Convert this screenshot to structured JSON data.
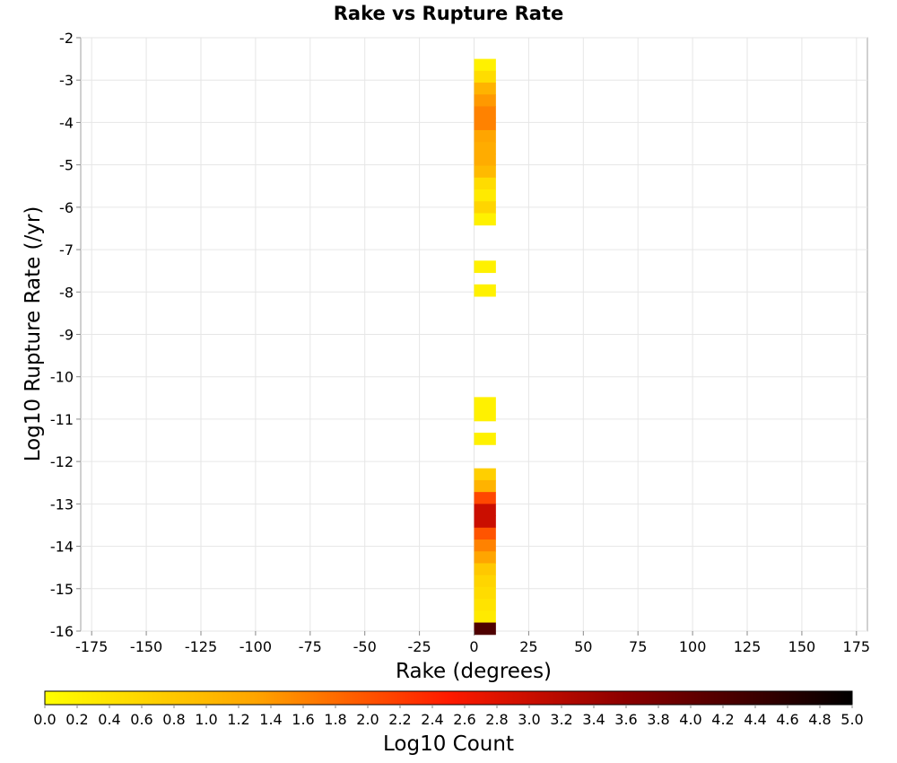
{
  "chart_data": {
    "type": "heatmap",
    "title": "Rake vs Rupture Rate",
    "xlabel": "Rake (degrees)",
    "ylabel": "Log10 Rupture Rate (/yr)",
    "xlim": [
      -180,
      180
    ],
    "ylim": [
      -16,
      -2
    ],
    "x_ticks": [
      -175,
      -150,
      -125,
      -100,
      -75,
      -50,
      -25,
      0,
      25,
      50,
      75,
      100,
      125,
      150,
      175
    ],
    "y_ticks": [
      -2,
      -3,
      -4,
      -5,
      -6,
      -7,
      -8,
      -9,
      -10,
      -11,
      -12,
      -13,
      -14,
      -15,
      -16
    ],
    "grid": true,
    "bin_width_x": 10,
    "bin_height_y": 0.28,
    "cells": [
      {
        "x": 5,
        "y": -2.64,
        "value": 0.2
      },
      {
        "x": 5,
        "y": -2.92,
        "value": 0.5
      },
      {
        "x": 5,
        "y": -3.2,
        "value": 1.1
      },
      {
        "x": 5,
        "y": -3.48,
        "value": 1.4
      },
      {
        "x": 5,
        "y": -3.76,
        "value": 1.6
      },
      {
        "x": 5,
        "y": -4.04,
        "value": 1.6
      },
      {
        "x": 5,
        "y": -4.32,
        "value": 1.3
      },
      {
        "x": 5,
        "y": -4.6,
        "value": 1.2
      },
      {
        "x": 5,
        "y": -4.88,
        "value": 1.2
      },
      {
        "x": 5,
        "y": -5.16,
        "value": 1.0
      },
      {
        "x": 5,
        "y": -5.44,
        "value": 0.5
      },
      {
        "x": 5,
        "y": -5.72,
        "value": 0.3
      },
      {
        "x": 5,
        "y": -6.0,
        "value": 0.6
      },
      {
        "x": 5,
        "y": -6.28,
        "value": 0.2
      },
      {
        "x": 5,
        "y": -7.4,
        "value": 0.2
      },
      {
        "x": 5,
        "y": -7.96,
        "value": 0.2
      },
      {
        "x": 5,
        "y": -10.62,
        "value": 0.2
      },
      {
        "x": 5,
        "y": -10.9,
        "value": 0.2
      },
      {
        "x": 5,
        "y": -11.46,
        "value": 0.2
      },
      {
        "x": 5,
        "y": -12.3,
        "value": 0.7
      },
      {
        "x": 5,
        "y": -12.58,
        "value": 1.1
      },
      {
        "x": 5,
        "y": -12.86,
        "value": 2.1
      },
      {
        "x": 5,
        "y": -13.14,
        "value": 3.0
      },
      {
        "x": 5,
        "y": -13.42,
        "value": 3.0
      },
      {
        "x": 5,
        "y": -13.7,
        "value": 2.0
      },
      {
        "x": 5,
        "y": -13.98,
        "value": 1.6
      },
      {
        "x": 5,
        "y": -14.26,
        "value": 1.3
      },
      {
        "x": 5,
        "y": -14.54,
        "value": 0.8
      },
      {
        "x": 5,
        "y": -14.82,
        "value": 0.6
      },
      {
        "x": 5,
        "y": -15.1,
        "value": 0.5
      },
      {
        "x": 5,
        "y": -15.38,
        "value": 0.4
      },
      {
        "x": 5,
        "y": -15.66,
        "value": 0.3
      },
      {
        "x": 5,
        "y": -15.94,
        "value": 4.2
      }
    ],
    "colorbar": {
      "label": "Log10 Count",
      "range": [
        0.0,
        5.0
      ],
      "ticks": [
        "0.0",
        "0.2",
        "0.4",
        "0.6",
        "0.8",
        "1.0",
        "1.2",
        "1.4",
        "1.6",
        "1.8",
        "2.0",
        "2.2",
        "2.4",
        "2.6",
        "2.8",
        "3.0",
        "3.2",
        "3.4",
        "3.6",
        "3.8",
        "4.0",
        "4.2",
        "4.4",
        "4.6",
        "4.8",
        "5.0"
      ],
      "colors": [
        "#ffff00",
        "#ffa500",
        "#ff0000",
        "#800000",
        "#000000"
      ]
    }
  }
}
